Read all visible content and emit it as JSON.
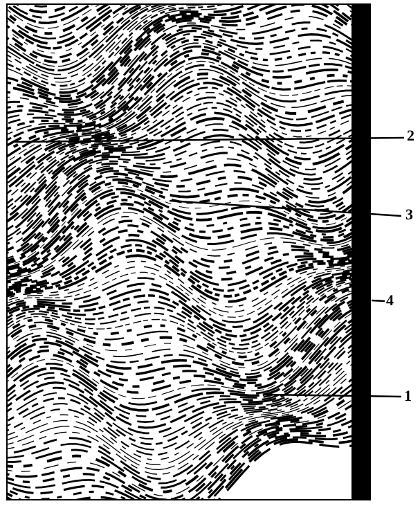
{
  "callouts": [
    "2",
    "3",
    "4",
    "1"
  ]
}
